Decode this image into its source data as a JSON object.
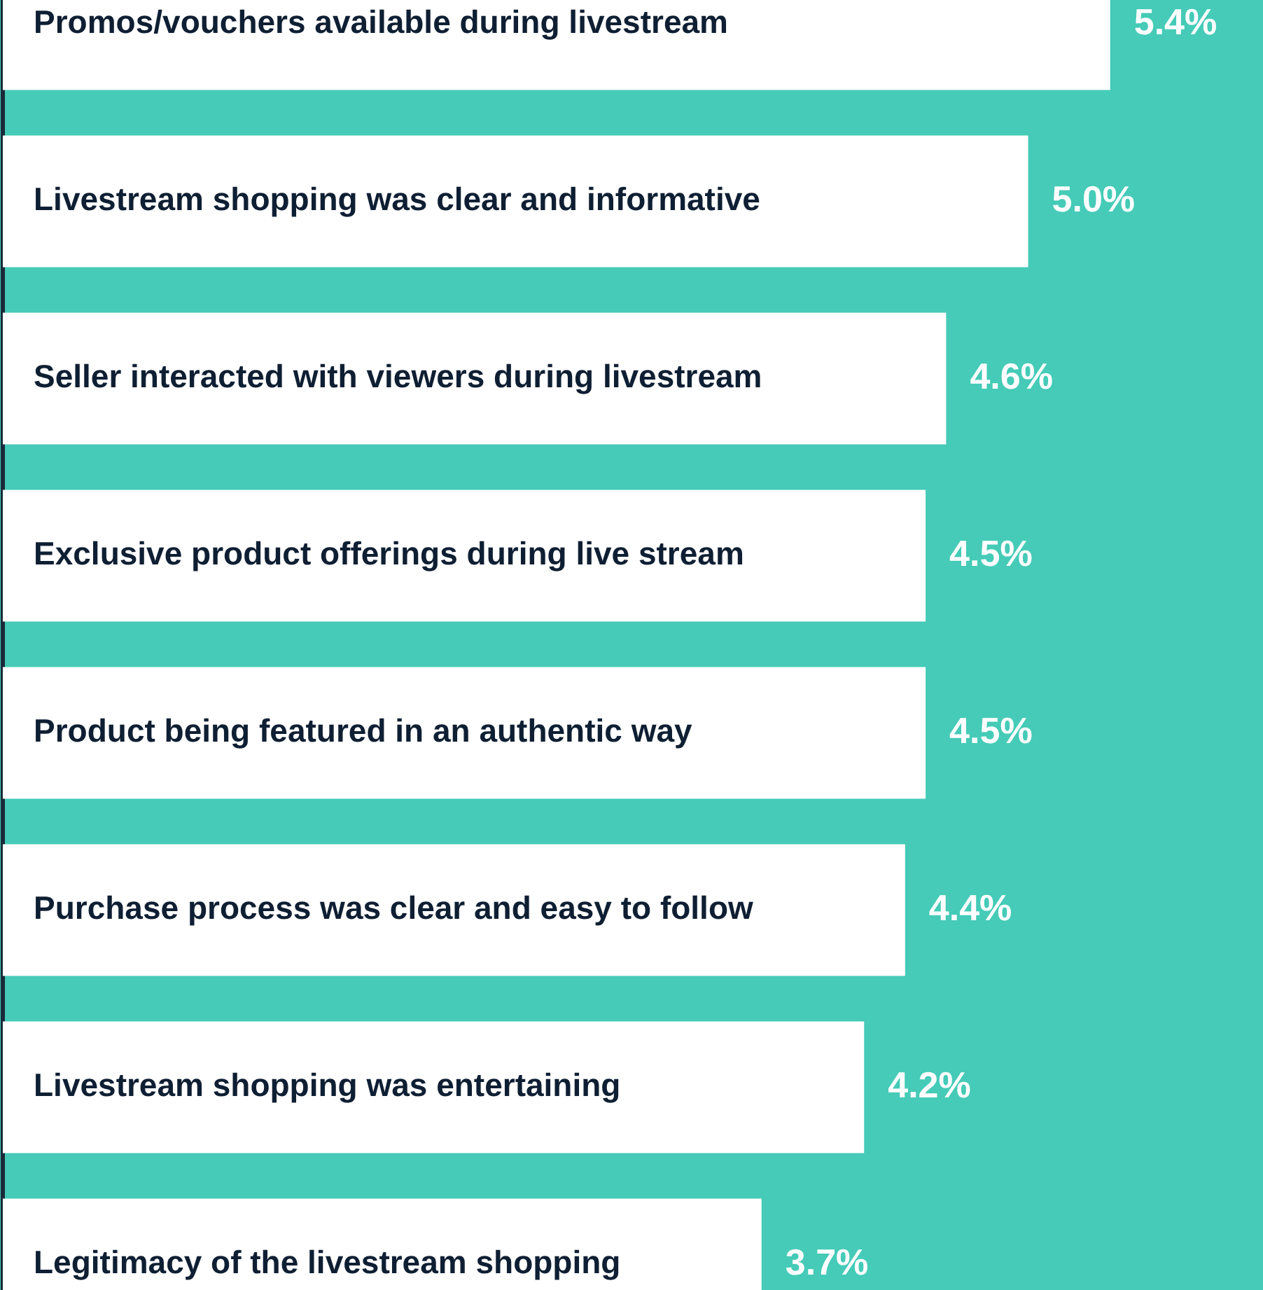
{
  "chart_data": {
    "type": "bar",
    "orientation": "horizontal",
    "categories": [
      "Promos/vouchers available during livestream",
      "Livestream shopping was clear and informative",
      "Seller interacted with viewers during livestream",
      "Exclusive product offerings during live stream",
      "Product being featured in an authentic way",
      "Purchase process was clear and easy to follow",
      "Livestream shopping was entertaining",
      "Legitimacy of the livestream shopping"
    ],
    "values": [
      5.4,
      5.0,
      4.6,
      4.5,
      4.5,
      4.4,
      4.2,
      3.7
    ],
    "value_labels": [
      "5.4%",
      "5.0%",
      "4.6%",
      "4.5%",
      "4.5%",
      "4.4%",
      "4.2%",
      "3.7%"
    ],
    "color": "#ffffff",
    "grid": false,
    "legend": false
  }
}
